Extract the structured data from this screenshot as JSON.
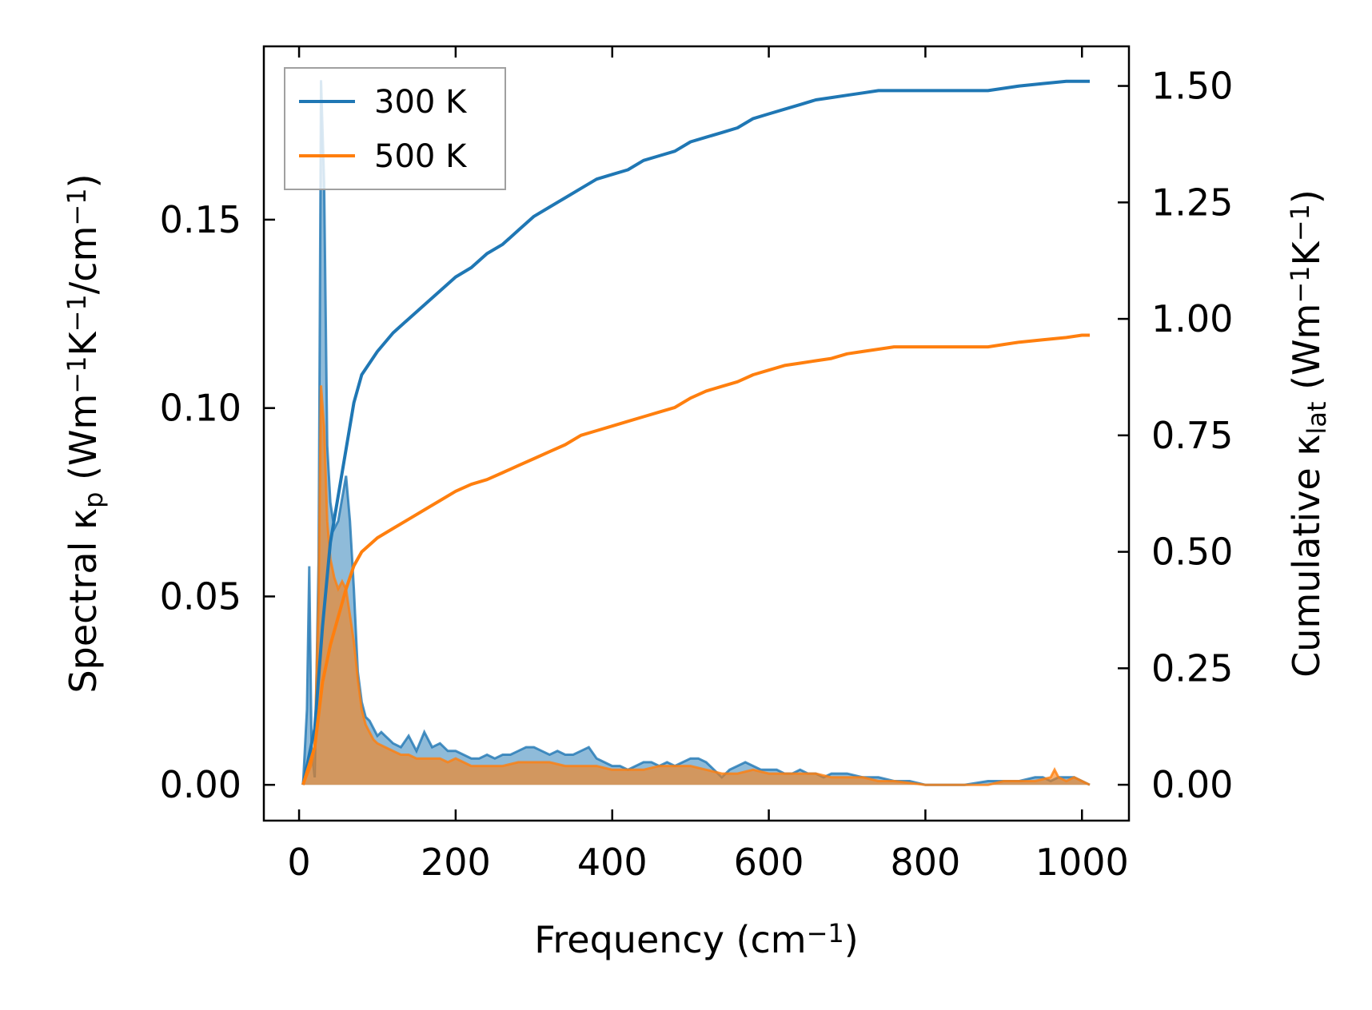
{
  "chart_data": {
    "type": "line",
    "xlabel": {
      "pre": "Frequency (cm",
      "sup": "−1",
      "post": ")"
    },
    "ylabel_left": {
      "parts": [
        {
          "t": "Spectral κ"
        },
        {
          "t": "p",
          "sub": true
        },
        {
          "t": " (Wm"
        },
        {
          "t": "−1",
          "sup": true
        },
        {
          "t": "K"
        },
        {
          "t": "−1",
          "sup": true
        },
        {
          "t": "/cm"
        },
        {
          "t": "−1",
          "sup": true
        },
        {
          "t": ")"
        }
      ]
    },
    "ylabel_right": {
      "parts": [
        {
          "t": "Cumulative κ"
        },
        {
          "t": "lat",
          "sub": true
        },
        {
          "t": " (Wm"
        },
        {
          "t": "−1",
          "sup": true
        },
        {
          "t": "K"
        },
        {
          "t": "−1",
          "sup": true
        },
        {
          "t": ")"
        }
      ]
    },
    "xlim": [
      -45,
      1060
    ],
    "ylim_left": [
      -0.0095,
      0.196
    ],
    "ylim_right": [
      -0.077,
      1.585
    ],
    "x_ticks": [
      0,
      200,
      400,
      600,
      800,
      1000
    ],
    "x_tick_labels": [
      "0",
      "200",
      "400",
      "600",
      "800",
      "1000"
    ],
    "left_ticks": [
      0.0,
      0.05,
      0.1,
      0.15
    ],
    "left_tick_labels": [
      "0.00",
      "0.05",
      "0.10",
      "0.15"
    ],
    "right_ticks": [
      0.0,
      0.25,
      0.5,
      0.75,
      1.0,
      1.25,
      1.5
    ],
    "right_tick_labels": [
      "0.00",
      "0.25",
      "0.50",
      "0.75",
      "1.00",
      "1.25",
      "1.50"
    ],
    "legend": {
      "placement": "top-left",
      "entries": [
        "300 K",
        "500 K"
      ]
    },
    "grid": false,
    "series": [
      {
        "name": "300 K",
        "color": "#1f77b4",
        "spectral": [
          [
            5,
            0
          ],
          [
            10,
            0.02
          ],
          [
            13,
            0.058
          ],
          [
            16,
            0.01
          ],
          [
            20,
            0.002
          ],
          [
            25,
            0.06
          ],
          [
            28,
            0.187
          ],
          [
            32,
            0.16
          ],
          [
            36,
            0.09
          ],
          [
            40,
            0.075
          ],
          [
            45,
            0.068
          ],
          [
            50,
            0.07
          ],
          [
            55,
            0.076
          ],
          [
            60,
            0.082
          ],
          [
            65,
            0.07
          ],
          [
            70,
            0.052
          ],
          [
            75,
            0.03
          ],
          [
            80,
            0.022
          ],
          [
            85,
            0.018
          ],
          [
            90,
            0.017
          ],
          [
            95,
            0.015
          ],
          [
            100,
            0.013
          ],
          [
            105,
            0.014
          ],
          [
            110,
            0.013
          ],
          [
            115,
            0.012
          ],
          [
            120,
            0.011
          ],
          [
            130,
            0.01
          ],
          [
            140,
            0.013
          ],
          [
            150,
            0.009
          ],
          [
            160,
            0.014
          ],
          [
            170,
            0.01
          ],
          [
            180,
            0.011
          ],
          [
            190,
            0.009
          ],
          [
            200,
            0.009
          ],
          [
            210,
            0.008
          ],
          [
            220,
            0.007
          ],
          [
            230,
            0.007
          ],
          [
            240,
            0.008
          ],
          [
            250,
            0.007
          ],
          [
            260,
            0.008
          ],
          [
            270,
            0.008
          ],
          [
            280,
            0.009
          ],
          [
            290,
            0.01
          ],
          [
            300,
            0.01
          ],
          [
            310,
            0.009
          ],
          [
            320,
            0.008
          ],
          [
            330,
            0.009
          ],
          [
            340,
            0.008
          ],
          [
            350,
            0.008
          ],
          [
            360,
            0.009
          ],
          [
            370,
            0.01
          ],
          [
            380,
            0.007
          ],
          [
            390,
            0.006
          ],
          [
            400,
            0.005
          ],
          [
            410,
            0.005
          ],
          [
            420,
            0.004
          ],
          [
            430,
            0.005
          ],
          [
            440,
            0.006
          ],
          [
            450,
            0.006
          ],
          [
            460,
            0.005
          ],
          [
            470,
            0.006
          ],
          [
            480,
            0.005
          ],
          [
            490,
            0.006
          ],
          [
            500,
            0.007
          ],
          [
            510,
            0.007
          ],
          [
            520,
            0.006
          ],
          [
            530,
            0.004
          ],
          [
            540,
            0.002
          ],
          [
            550,
            0.004
          ],
          [
            560,
            0.005
          ],
          [
            570,
            0.006
          ],
          [
            580,
            0.005
          ],
          [
            590,
            0.004
          ],
          [
            600,
            0.004
          ],
          [
            610,
            0.004
          ],
          [
            620,
            0.003
          ],
          [
            630,
            0.003
          ],
          [
            640,
            0.004
          ],
          [
            650,
            0.003
          ],
          [
            660,
            0.003
          ],
          [
            670,
            0.002
          ],
          [
            680,
            0.003
          ],
          [
            690,
            0.003
          ],
          [
            700,
            0.003
          ],
          [
            720,
            0.002
          ],
          [
            740,
            0.002
          ],
          [
            760,
            0.001
          ],
          [
            780,
            0.001
          ],
          [
            800,
            0.0
          ],
          [
            850,
            0.0
          ],
          [
            880,
            0.001
          ],
          [
            900,
            0.001
          ],
          [
            920,
            0.001
          ],
          [
            940,
            0.002
          ],
          [
            950,
            0.002
          ],
          [
            960,
            0.001
          ],
          [
            970,
            0.002
          ],
          [
            980,
            0.002
          ],
          [
            990,
            0.002
          ],
          [
            1000,
            0.001
          ],
          [
            1010,
            0.0
          ]
        ],
        "cumulative": [
          [
            5,
            0
          ],
          [
            20,
            0.12
          ],
          [
            30,
            0.34
          ],
          [
            40,
            0.52
          ],
          [
            50,
            0.62
          ],
          [
            60,
            0.72
          ],
          [
            70,
            0.82
          ],
          [
            80,
            0.88
          ],
          [
            100,
            0.93
          ],
          [
            120,
            0.97
          ],
          [
            140,
            1.0
          ],
          [
            160,
            1.03
          ],
          [
            180,
            1.06
          ],
          [
            200,
            1.09
          ],
          [
            220,
            1.11
          ],
          [
            240,
            1.14
          ],
          [
            260,
            1.16
          ],
          [
            280,
            1.19
          ],
          [
            300,
            1.22
          ],
          [
            320,
            1.24
          ],
          [
            340,
            1.26
          ],
          [
            360,
            1.28
          ],
          [
            380,
            1.3
          ],
          [
            400,
            1.31
          ],
          [
            420,
            1.32
          ],
          [
            440,
            1.34
          ],
          [
            460,
            1.35
          ],
          [
            480,
            1.36
          ],
          [
            500,
            1.38
          ],
          [
            520,
            1.39
          ],
          [
            540,
            1.4
          ],
          [
            560,
            1.41
          ],
          [
            580,
            1.43
          ],
          [
            600,
            1.44
          ],
          [
            620,
            1.45
          ],
          [
            640,
            1.46
          ],
          [
            660,
            1.47
          ],
          [
            680,
            1.475
          ],
          [
            700,
            1.48
          ],
          [
            720,
            1.485
          ],
          [
            740,
            1.49
          ],
          [
            760,
            1.49
          ],
          [
            800,
            1.49
          ],
          [
            850,
            1.49
          ],
          [
            880,
            1.49
          ],
          [
            900,
            1.495
          ],
          [
            920,
            1.5
          ],
          [
            950,
            1.505
          ],
          [
            980,
            1.51
          ],
          [
            1000,
            1.51
          ],
          [
            1010,
            1.51
          ]
        ]
      },
      {
        "name": "500 K",
        "color": "#ff7f0e",
        "spectral": [
          [
            5,
            0
          ],
          [
            15,
            0.005
          ],
          [
            20,
            0.01
          ],
          [
            25,
            0.05
          ],
          [
            28,
            0.106
          ],
          [
            32,
            0.095
          ],
          [
            36,
            0.07
          ],
          [
            40,
            0.06
          ],
          [
            45,
            0.055
          ],
          [
            50,
            0.052
          ],
          [
            55,
            0.054
          ],
          [
            60,
            0.052
          ],
          [
            65,
            0.045
          ],
          [
            70,
            0.038
          ],
          [
            75,
            0.028
          ],
          [
            80,
            0.02
          ],
          [
            85,
            0.016
          ],
          [
            90,
            0.014
          ],
          [
            95,
            0.012
          ],
          [
            100,
            0.011
          ],
          [
            110,
            0.01
          ],
          [
            120,
            0.009
          ],
          [
            130,
            0.008
          ],
          [
            140,
            0.008
          ],
          [
            150,
            0.007
          ],
          [
            160,
            0.007
          ],
          [
            170,
            0.007
          ],
          [
            180,
            0.007
          ],
          [
            190,
            0.006
          ],
          [
            200,
            0.007
          ],
          [
            210,
            0.006
          ],
          [
            220,
            0.005
          ],
          [
            240,
            0.005
          ],
          [
            260,
            0.005
          ],
          [
            280,
            0.006
          ],
          [
            300,
            0.006
          ],
          [
            320,
            0.006
          ],
          [
            340,
            0.005
          ],
          [
            360,
            0.005
          ],
          [
            380,
            0.005
          ],
          [
            400,
            0.004
          ],
          [
            420,
            0.004
          ],
          [
            440,
            0.004
          ],
          [
            460,
            0.005
          ],
          [
            480,
            0.005
          ],
          [
            500,
            0.005
          ],
          [
            520,
            0.004
          ],
          [
            540,
            0.003
          ],
          [
            560,
            0.003
          ],
          [
            580,
            0.004
          ],
          [
            600,
            0.003
          ],
          [
            620,
            0.003
          ],
          [
            640,
            0.003
          ],
          [
            660,
            0.003
          ],
          [
            680,
            0.002
          ],
          [
            700,
            0.002
          ],
          [
            720,
            0.002
          ],
          [
            740,
            0.001
          ],
          [
            760,
            0.001
          ],
          [
            800,
            0.0
          ],
          [
            850,
            0.0
          ],
          [
            880,
            0.0
          ],
          [
            900,
            0.001
          ],
          [
            940,
            0.001
          ],
          [
            960,
            0.002
          ],
          [
            965,
            0.004
          ],
          [
            970,
            0.002
          ],
          [
            980,
            0.001
          ],
          [
            990,
            0.002
          ],
          [
            1000,
            0.001
          ],
          [
            1010,
            0.0
          ]
        ],
        "cumulative": [
          [
            5,
            0
          ],
          [
            20,
            0.08
          ],
          [
            30,
            0.22
          ],
          [
            40,
            0.3
          ],
          [
            50,
            0.36
          ],
          [
            60,
            0.42
          ],
          [
            70,
            0.47
          ],
          [
            80,
            0.5
          ],
          [
            100,
            0.53
          ],
          [
            120,
            0.55
          ],
          [
            140,
            0.57
          ],
          [
            160,
            0.59
          ],
          [
            180,
            0.61
          ],
          [
            200,
            0.63
          ],
          [
            220,
            0.645
          ],
          [
            240,
            0.655
          ],
          [
            260,
            0.67
          ],
          [
            280,
            0.685
          ],
          [
            300,
            0.7
          ],
          [
            320,
            0.715
          ],
          [
            340,
            0.73
          ],
          [
            360,
            0.75
          ],
          [
            380,
            0.76
          ],
          [
            400,
            0.77
          ],
          [
            420,
            0.78
          ],
          [
            440,
            0.79
          ],
          [
            460,
            0.8
          ],
          [
            480,
            0.81
          ],
          [
            500,
            0.83
          ],
          [
            520,
            0.845
          ],
          [
            540,
            0.855
          ],
          [
            560,
            0.865
          ],
          [
            580,
            0.88
          ],
          [
            600,
            0.89
          ],
          [
            620,
            0.9
          ],
          [
            640,
            0.905
          ],
          [
            660,
            0.91
          ],
          [
            680,
            0.915
          ],
          [
            700,
            0.925
          ],
          [
            720,
            0.93
          ],
          [
            740,
            0.935
          ],
          [
            760,
            0.94
          ],
          [
            800,
            0.94
          ],
          [
            850,
            0.94
          ],
          [
            880,
            0.94
          ],
          [
            900,
            0.945
          ],
          [
            920,
            0.95
          ],
          [
            950,
            0.955
          ],
          [
            980,
            0.96
          ],
          [
            1000,
            0.965
          ],
          [
            1010,
            0.965
          ]
        ]
      }
    ]
  }
}
